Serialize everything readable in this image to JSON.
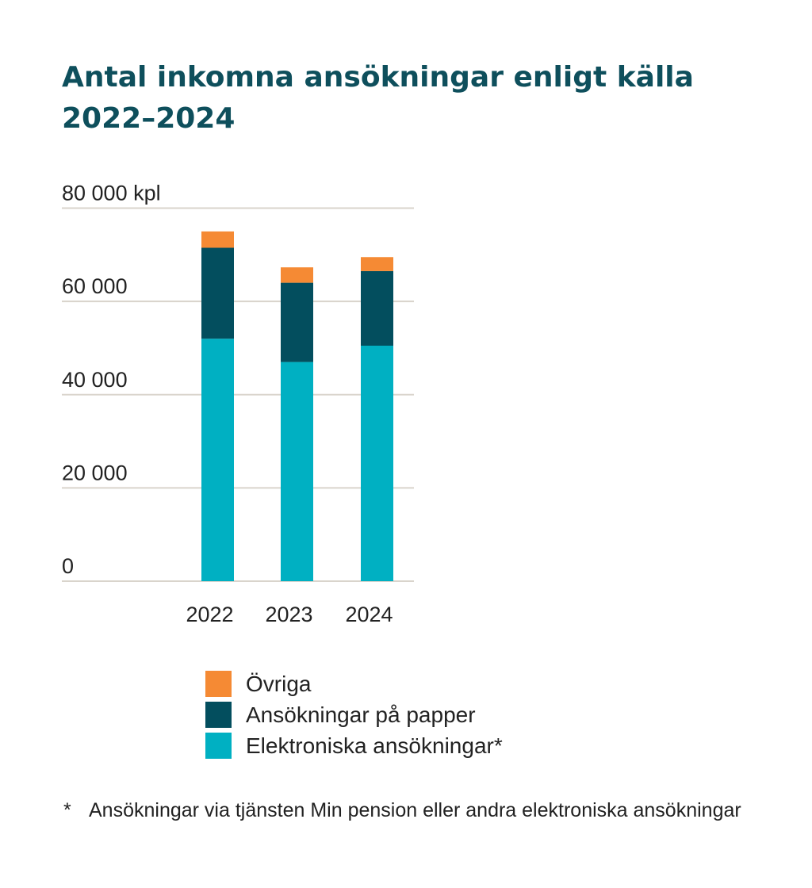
{
  "chart_data": {
    "type": "bar",
    "stacked": true,
    "title": "Antal inkomna ansökningar enligt källa 2022–2024",
    "categories": [
      "2022",
      "2023",
      "2024"
    ],
    "series": [
      {
        "name": "Elektroniska ansökningar*",
        "color": "#00b0c2",
        "values": [
          52000,
          47000,
          50500
        ]
      },
      {
        "name": "Ansökningar på papper",
        "color": "#034e5e",
        "values": [
          19500,
          17000,
          16000
        ]
      },
      {
        "name": "Övriga",
        "color": "#f58a34",
        "values": [
          3500,
          3300,
          3000
        ]
      }
    ],
    "ylim": [
      0,
      80000
    ],
    "yticks": [
      0,
      20000,
      40000,
      60000,
      80000
    ],
    "ytick_labels": [
      "0",
      "20 000",
      "40 000",
      "60 000",
      "80 000 kpl"
    ],
    "grid": true,
    "gridline_color": "#d9d4cc",
    "legend": [
      {
        "label": "Övriga",
        "color": "#f58a34"
      },
      {
        "label": "Ansökningar på papper",
        "color": "#034e5e"
      },
      {
        "label": "Elektroniska ansökningar*",
        "color": "#00b0c2"
      }
    ],
    "footnote_marker": "*",
    "footnote": "Ansökningar via tjänsten Min pension eller andra elektroniska ansökningar"
  }
}
